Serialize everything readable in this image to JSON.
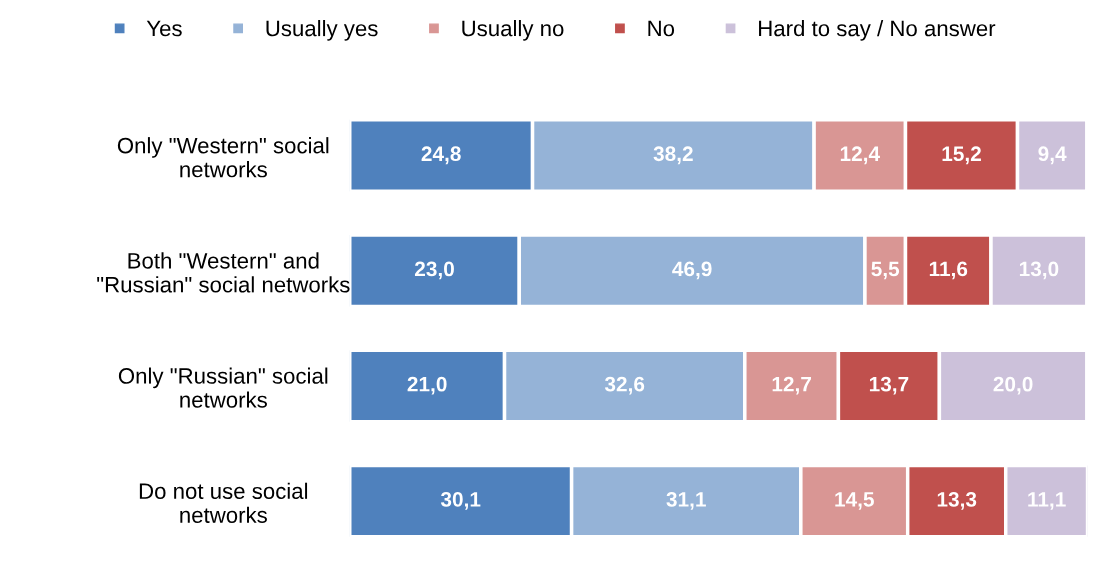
{
  "chart_data": {
    "type": "bar",
    "orientation": "horizontal",
    "stacked": true,
    "legend": "top",
    "categories": [
      "Only \"Western\" social networks",
      "Both \"Western\" and \"Russian\" social networks",
      "Only \"Russian\" social networks",
      "Do not use social networks"
    ],
    "series": [
      {
        "name": "Yes",
        "color": "#4f81bd",
        "values": [
          24.8,
          23.0,
          21.0,
          30.1
        ],
        "value_labels": [
          "24,8",
          "23,0",
          "21,0",
          "30,1"
        ]
      },
      {
        "name": "Usually yes",
        "color": "#95b3d7",
        "values": [
          38.2,
          46.9,
          32.6,
          31.1
        ],
        "value_labels": [
          "38,2",
          "46,9",
          "32,6",
          "31,1"
        ]
      },
      {
        "name": "Usually no",
        "color": "#d99694",
        "values": [
          12.4,
          5.5,
          12.7,
          14.5
        ],
        "value_labels": [
          "12,4",
          "5,5",
          "12,7",
          "14,5"
        ]
      },
      {
        "name": "No",
        "color": "#c0504d",
        "values": [
          15.2,
          11.6,
          13.7,
          13.3
        ],
        "value_labels": [
          "15,2",
          "11,6",
          "13,7",
          "13,3"
        ]
      },
      {
        "name": "Hard to say / No answer",
        "color": "#ccc1da",
        "values": [
          9.4,
          13.0,
          20.0,
          11.1
        ],
        "value_labels": [
          "9,4",
          "13,0",
          "20,0",
          "11,1"
        ]
      }
    ]
  }
}
